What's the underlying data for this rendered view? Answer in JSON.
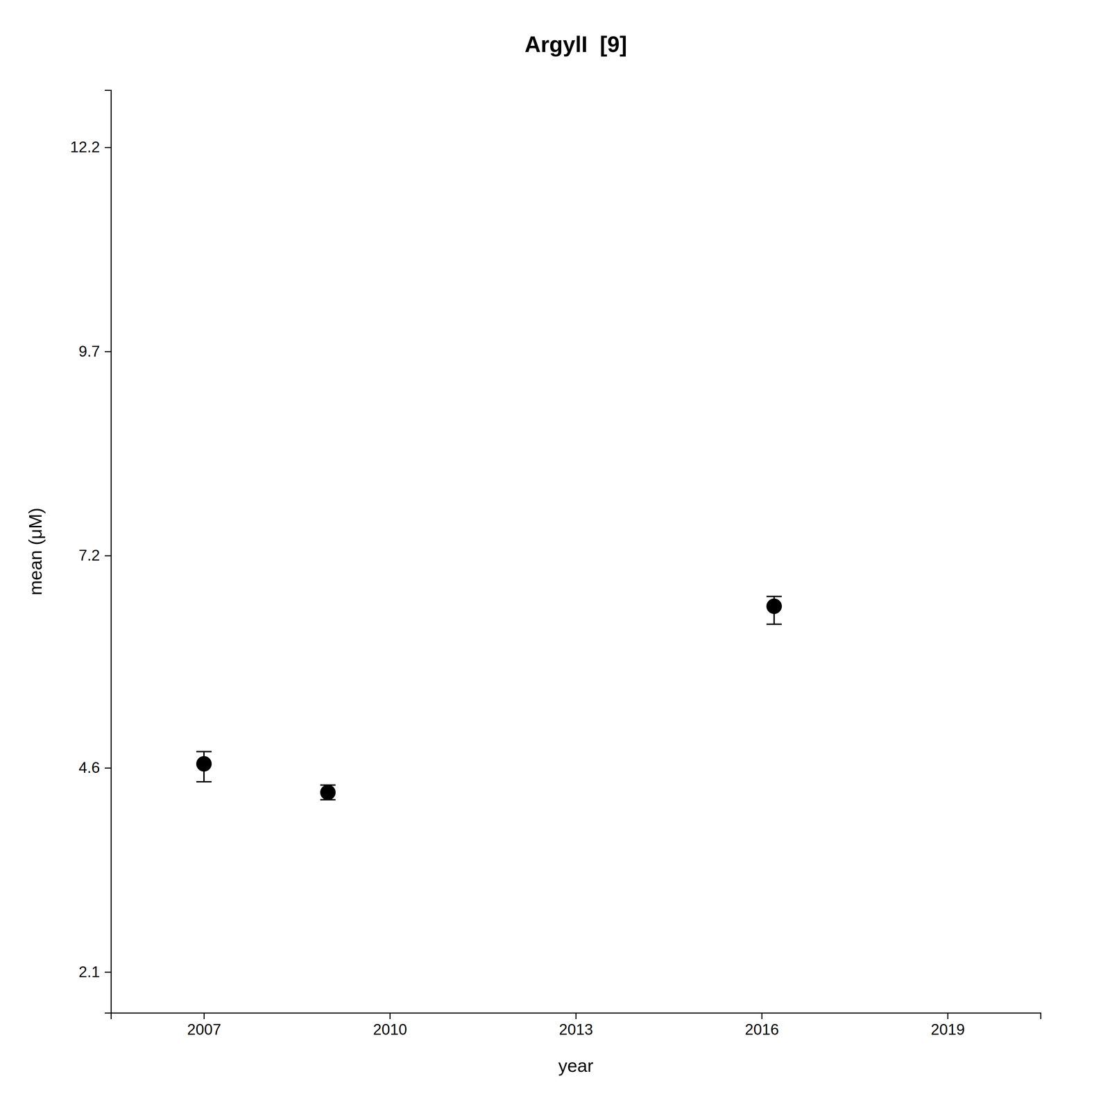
{
  "chart_data": {
    "type": "scatter",
    "title": "ArgylI  [9]",
    "x_label": "year",
    "y_label": "mean (μM)",
    "x": [
      2007,
      2009.0,
      2016.2
    ],
    "values": [
      4.65,
      4.3,
      6.58
    ],
    "err_lower": [
      0.22,
      0.09,
      0.22
    ],
    "err_upper": [
      0.15,
      0.09,
      0.12
    ],
    "color": "#000000",
    "marker": "circle",
    "grid": false,
    "xlim": [
      2005.5,
      2020.5
    ],
    "ylim": [
      1.6,
      12.9
    ],
    "xticks": [
      2007,
      2010,
      2013,
      2016,
      2019
    ],
    "yticks": [
      2.1,
      4.6,
      7.2,
      9.7,
      12.2
    ]
  }
}
